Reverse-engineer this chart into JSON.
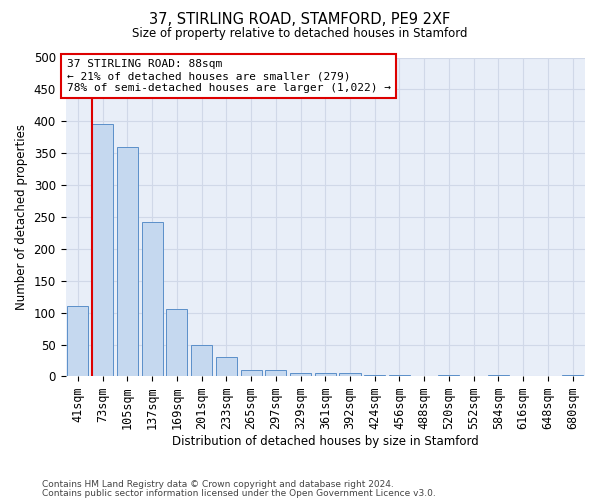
{
  "title1": "37, STIRLING ROAD, STAMFORD, PE9 2XF",
  "title2": "Size of property relative to detached houses in Stamford",
  "xlabel": "Distribution of detached houses by size in Stamford",
  "ylabel": "Number of detached properties",
  "categories": [
    "41sqm",
    "73sqm",
    "105sqm",
    "137sqm",
    "169sqm",
    "201sqm",
    "233sqm",
    "265sqm",
    "297sqm",
    "329sqm",
    "361sqm",
    "392sqm",
    "424sqm",
    "456sqm",
    "488sqm",
    "520sqm",
    "552sqm",
    "584sqm",
    "616sqm",
    "648sqm",
    "680sqm"
  ],
  "bar_heights": [
    110,
    395,
    360,
    242,
    105,
    50,
    30,
    10,
    10,
    6,
    6,
    6,
    3,
    3,
    0,
    3,
    0,
    3,
    0,
    0,
    3
  ],
  "bar_color": "#c5d8ef",
  "bar_edge_color": "#5b8fc9",
  "ylim": [
    0,
    500
  ],
  "yticks": [
    0,
    50,
    100,
    150,
    200,
    250,
    300,
    350,
    400,
    450,
    500
  ],
  "vline_color": "#dd0000",
  "annotation_text": "37 STIRLING ROAD: 88sqm\n← 21% of detached houses are smaller (279)\n78% of semi-detached houses are larger (1,022) →",
  "annotation_box_color": "#dd0000",
  "footer1": "Contains HM Land Registry data © Crown copyright and database right 2024.",
  "footer2": "Contains public sector information licensed under the Open Government Licence v3.0.",
  "background_color": "#ffffff",
  "grid_color": "#d0d8e8"
}
